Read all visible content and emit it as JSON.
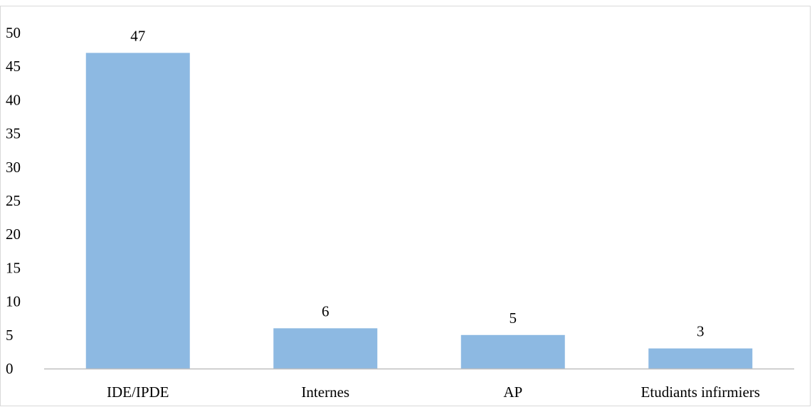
{
  "chart_data": {
    "type": "bar",
    "categories": [
      "IDE/IPDE",
      "Internes",
      "AP",
      "Etudiants infirmiers"
    ],
    "values": [
      47,
      6,
      5,
      3
    ],
    "title": "",
    "xlabel": "",
    "ylabel": "",
    "ylim": [
      0,
      50
    ],
    "yticks": [
      0,
      5,
      10,
      15,
      20,
      25,
      30,
      35,
      40,
      45,
      50
    ],
    "grid": false,
    "legend": "none",
    "bar_color": "#8db9e2",
    "axis_color": "#bfbfbf",
    "data_labels": [
      "47",
      "6",
      "5",
      "3"
    ]
  }
}
